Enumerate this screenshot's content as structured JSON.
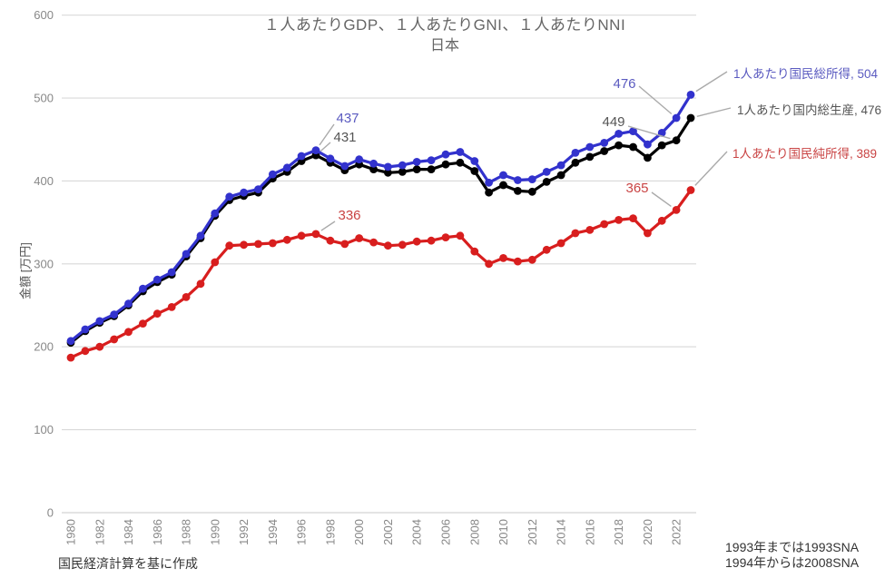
{
  "page": {
    "title_line1": "１人あたりGDP、１人あたりGNI、１人あたりNNI",
    "title_line2": "日本",
    "y_axis_label": "金額 [万円]",
    "footnote_left": "国民経済計算を基に作成",
    "footnote_right_line1": "1993年までは1993SNA",
    "footnote_right_line2": "1994年からは2008SNA"
  },
  "colors": {
    "gni_line": "#3232cd",
    "gdp_line": "#000000",
    "nni_line": "#d81e1e",
    "gni_label": "#5a5ac0",
    "gdp_label": "#555555",
    "nni_label": "#c94444",
    "gridline": "#d9d9d9",
    "axis_line": "#c8c8c8",
    "tick_text": "#888888",
    "leader_line": "#aaaaaa"
  },
  "chart_data": {
    "type": "line",
    "title": "１人あたりGDP、１人あたりGNI、１人あたりNNI",
    "subtitle": "日本",
    "xlabel": "",
    "ylabel": "金額 [万円]",
    "ylim": [
      0,
      600
    ],
    "grid": true,
    "legend_position": "right-end-labels",
    "y_ticks": [
      0,
      100,
      200,
      300,
      400,
      500,
      600
    ],
    "x_tick_years": [
      1980,
      1982,
      1984,
      1986,
      1988,
      1990,
      1992,
      1994,
      1996,
      1998,
      2000,
      2002,
      2004,
      2006,
      2008,
      2010,
      2012,
      2014,
      2016,
      2018,
      2020,
      2022
    ],
    "x": [
      1980,
      1981,
      1982,
      1983,
      1984,
      1985,
      1986,
      1987,
      1988,
      1989,
      1990,
      1991,
      1992,
      1993,
      1994,
      1995,
      1996,
      1997,
      1998,
      1999,
      2000,
      2001,
      2002,
      2003,
      2004,
      2005,
      2006,
      2007,
      2008,
      2009,
      2010,
      2011,
      2012,
      2013,
      2014,
      2015,
      2016,
      2017,
      2018,
      2019,
      2020,
      2021,
      2022,
      2023
    ],
    "series": [
      {
        "id": "gni",
        "name": "1人あたり国民総所得",
        "color_key": "gni_line",
        "label_color_key": "gni_label",
        "values": [
          207,
          221,
          231,
          239,
          252,
          270,
          281,
          290,
          312,
          334,
          361,
          381,
          386,
          390,
          408,
          416,
          430,
          437,
          427,
          418,
          426,
          421,
          417,
          419,
          423,
          425,
          432,
          435,
          424,
          398,
          407,
          401,
          402,
          411,
          419,
          434,
          441,
          446,
          457,
          460,
          444,
          458,
          476,
          504
        ],
        "end_value": 504,
        "end_label": "1人あたり国民総所得, 504"
      },
      {
        "id": "gdp",
        "name": "1人あたり国内総生産",
        "color_key": "gdp_line",
        "label_color_key": "gdp_label",
        "values": [
          205,
          219,
          229,
          237,
          250,
          267,
          278,
          287,
          309,
          331,
          358,
          377,
          382,
          386,
          403,
          411,
          424,
          431,
          422,
          413,
          420,
          414,
          410,
          411,
          414,
          414,
          420,
          422,
          412,
          386,
          395,
          388,
          387,
          399,
          407,
          422,
          429,
          436,
          443,
          441,
          428,
          443,
          449,
          476
        ],
        "end_value": 476,
        "end_label": "1人あたり国内総生産, 476"
      },
      {
        "id": "nni",
        "name": "1人あたり国民純所得",
        "color_key": "nni_line",
        "label_color_key": "nni_label",
        "values": [
          187,
          195,
          200,
          209,
          218,
          228,
          240,
          248,
          260,
          276,
          302,
          322,
          323,
          324,
          325,
          329,
          334,
          336,
          328,
          324,
          331,
          326,
          322,
          323,
          327,
          328,
          332,
          334,
          315,
          300,
          307,
          303,
          305,
          317,
          325,
          337,
          341,
          348,
          353,
          355,
          337,
          352,
          365,
          389
        ],
        "end_value": 389,
        "end_label": "1人あたり国民純所得, 389"
      }
    ],
    "annotations": [
      {
        "text": "437",
        "series": "gni",
        "year": 1997,
        "value": 437
      },
      {
        "text": "431",
        "series": "gdp",
        "year": 1997,
        "value": 431
      },
      {
        "text": "336",
        "series": "nni",
        "year": 1997,
        "value": 336
      },
      {
        "text": "476",
        "series": "gni",
        "year": 2022,
        "value": 476
      },
      {
        "text": "449",
        "series": "gdp",
        "year": 2022,
        "value": 449
      },
      {
        "text": "365",
        "series": "nni",
        "year": 2022,
        "value": 365
      }
    ]
  }
}
